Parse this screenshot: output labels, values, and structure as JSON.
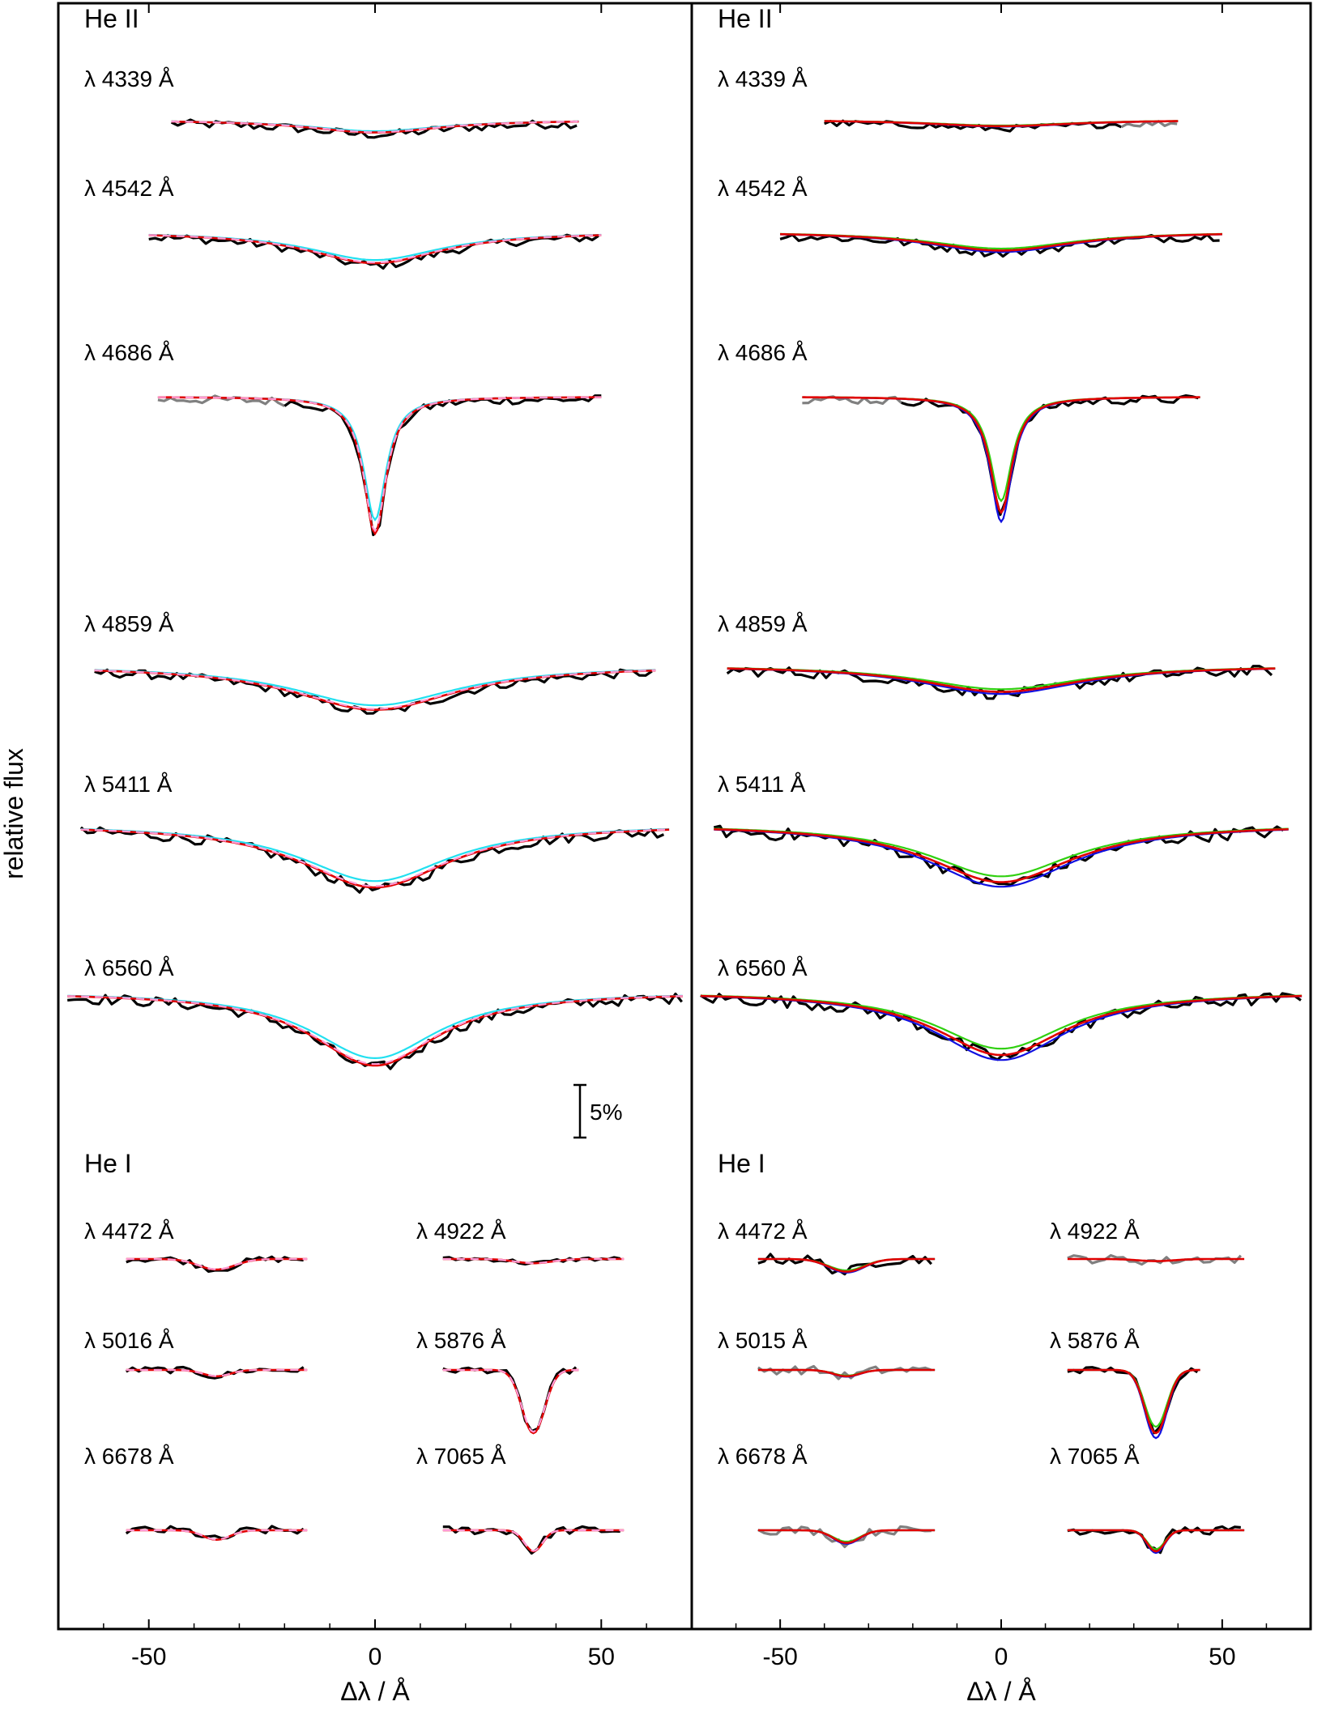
{
  "y_axis_label": "relative flux",
  "scale_bar_label": "5%",
  "chart_data": [
    {
      "type": "line",
      "panel": "left",
      "xlabel": "Δλ / Å",
      "xlim": [
        -70,
        70
      ],
      "xticks": [
        -50,
        0,
        50
      ],
      "xtick_labels": [
        "-50",
        "0",
        "50"
      ],
      "colors": {
        "observed": "#000000",
        "masked": "#808080",
        "model_red": "#e00000",
        "model_cyan": "#22e0f0",
        "model_pink": "#ff9ad5"
      },
      "groups": [
        {
          "label": "He II"
        },
        {
          "label": "He I"
        }
      ],
      "lines": [
        {
          "label": "λ 4339 Å",
          "range": [
            -45,
            45
          ],
          "depth": 0.012,
          "width": 18,
          "shape": "lorentz",
          "noise": 0.004,
          "models": [
            "cyan",
            "red",
            "pink"
          ]
        },
        {
          "label": "λ 4542 Å",
          "range": [
            -50,
            50
          ],
          "depth": 0.03,
          "width": 18,
          "shape": "lorentz",
          "noise": 0.004,
          "models": [
            "cyan",
            "red",
            "pink"
          ]
        },
        {
          "label": "λ 4686 Å",
          "range": [
            -48,
            50
          ],
          "depth": 0.13,
          "width": 3,
          "shape": "lorentz",
          "noise": 0.004,
          "masked_range": [
            -48,
            -20
          ],
          "models": [
            "cyan",
            "red",
            "pink"
          ]
        },
        {
          "label": "λ 4859 Å",
          "range": [
            -62,
            62
          ],
          "depth": 0.042,
          "width": 22,
          "shape": "lorentz",
          "noise": 0.004,
          "models": [
            "cyan",
            "red",
            "pink"
          ]
        },
        {
          "label": "λ 5411 Å",
          "range": [
            -65,
            65
          ],
          "depth": 0.06,
          "width": 20,
          "shape": "lorentz",
          "noise": 0.005,
          "models": [
            "cyan",
            "red",
            "pink"
          ]
        },
        {
          "label": "λ 6560 Å",
          "range": [
            -68,
            68
          ],
          "depth": 0.07,
          "width": 17,
          "shape": "lorentz",
          "noise": 0.005,
          "models": [
            "cyan",
            "red",
            "pink"
          ]
        },
        {
          "label": "λ 4472 Å",
          "range": [
            -55,
            -15
          ],
          "depth": 0.01,
          "width": 4,
          "shape": "gauss",
          "noise": 0.003,
          "models": [
            "red",
            "pink"
          ]
        },
        {
          "label": "λ 4922 Å",
          "range": [
            15,
            55
          ],
          "depth": 0.004,
          "width": 4,
          "shape": "gauss",
          "noise": 0.002,
          "models": [
            "red",
            "pink"
          ]
        },
        {
          "label": "λ 5016 Å",
          "range": [
            -55,
            -15
          ],
          "depth": 0.006,
          "width": 3,
          "shape": "gauss",
          "noise": 0.003,
          "models": [
            "red",
            "pink"
          ]
        },
        {
          "label": "λ 5876 Å",
          "range": [
            15,
            45
          ],
          "depth": 0.06,
          "width": 2.5,
          "shape": "gauss",
          "noise": 0.003,
          "models": [
            "red",
            "pink"
          ]
        },
        {
          "label": "λ 6678 Å",
          "range": [
            -55,
            -15
          ],
          "depth": 0.009,
          "width": 3,
          "shape": "gauss",
          "noise": 0.004,
          "models": [
            "red",
            "pink"
          ]
        },
        {
          "label": "λ 7065 Å",
          "range": [
            15,
            55
          ],
          "depth": 0.02,
          "width": 2,
          "shape": "gauss",
          "noise": 0.004,
          "models": [
            "red",
            "pink"
          ]
        }
      ]
    },
    {
      "type": "line",
      "panel": "right",
      "xlabel": "Δλ / Å",
      "xlim": [
        -70,
        70
      ],
      "xticks": [
        -50,
        0,
        50
      ],
      "xtick_labels": [
        "-50",
        "0",
        "50"
      ],
      "colors": {
        "observed": "#000000",
        "masked": "#808080",
        "model_red": "#e00000",
        "model_blue": "#1010e0",
        "model_green": "#30d010"
      },
      "groups": [
        {
          "label": "He II"
        },
        {
          "label": "He I"
        }
      ],
      "lines": [
        {
          "label": "λ 4339 Å",
          "range": [
            -40,
            40
          ],
          "depth": 0.006,
          "width": 20,
          "shape": "lorentz",
          "noise": 0.003,
          "masked_range": [
            28,
            40
          ],
          "models": [
            "blue",
            "green",
            "red"
          ]
        },
        {
          "label": "λ 4542 Å",
          "range": [
            -50,
            50
          ],
          "depth": 0.018,
          "width": 20,
          "shape": "lorentz",
          "noise": 0.004,
          "models": [
            "blue",
            "green",
            "red"
          ]
        },
        {
          "label": "λ 4686 Å",
          "range": [
            -45,
            45
          ],
          "depth": 0.11,
          "width": 3,
          "shape": "lorentz",
          "noise": 0.004,
          "masked_range": [
            -45,
            -22
          ],
          "models": [
            "blue",
            "green",
            "red"
          ]
        },
        {
          "label": "λ 4859 Å",
          "range": [
            -62,
            62
          ],
          "depth": 0.025,
          "width": 22,
          "shape": "lorentz",
          "noise": 0.005,
          "models": [
            "blue",
            "green",
            "red"
          ]
        },
        {
          "label": "λ 5411 Å",
          "range": [
            -65,
            65
          ],
          "depth": 0.055,
          "width": 20,
          "shape": "lorentz",
          "noise": 0.006,
          "models": [
            "blue",
            "green",
            "red"
          ]
        },
        {
          "label": "λ 6560 Å",
          "range": [
            -68,
            68
          ],
          "depth": 0.06,
          "width": 18,
          "shape": "lorentz",
          "noise": 0.006,
          "models": [
            "blue",
            "green",
            "red"
          ]
        },
        {
          "label": "λ 4472 Å",
          "range": [
            -55,
            -15
          ],
          "depth": 0.012,
          "width": 4,
          "shape": "gauss",
          "noise": 0.005,
          "models": [
            "blue",
            "green",
            "red"
          ]
        },
        {
          "label": "λ 4922 Å",
          "range": [
            15,
            55
          ],
          "depth": 0.002,
          "width": 4,
          "shape": "gauss",
          "noise": 0.004,
          "masked_range": [
            15,
            55
          ],
          "models": [
            "red"
          ]
        },
        {
          "label": "λ 5015 Å",
          "range": [
            -55,
            -15
          ],
          "depth": 0.006,
          "width": 3,
          "shape": "gauss",
          "noise": 0.004,
          "masked_range": [
            -55,
            -15
          ],
          "models": [
            "blue",
            "green",
            "red"
          ]
        },
        {
          "label": "λ 5876 Å",
          "range": [
            15,
            45
          ],
          "depth": 0.06,
          "width": 2.5,
          "shape": "gauss",
          "noise": 0.003,
          "models": [
            "blue",
            "green",
            "red"
          ]
        },
        {
          "label": "λ 6678 Å",
          "range": [
            -55,
            -15
          ],
          "depth": 0.012,
          "width": 3,
          "shape": "gauss",
          "noise": 0.004,
          "masked_range": [
            -55,
            -15
          ],
          "models": [
            "blue",
            "green",
            "red"
          ]
        },
        {
          "label": "λ 7065 Å",
          "range": [
            15,
            55
          ],
          "depth": 0.02,
          "width": 2,
          "shape": "gauss",
          "noise": 0.004,
          "models": [
            "blue",
            "green",
            "red"
          ]
        }
      ]
    }
  ]
}
